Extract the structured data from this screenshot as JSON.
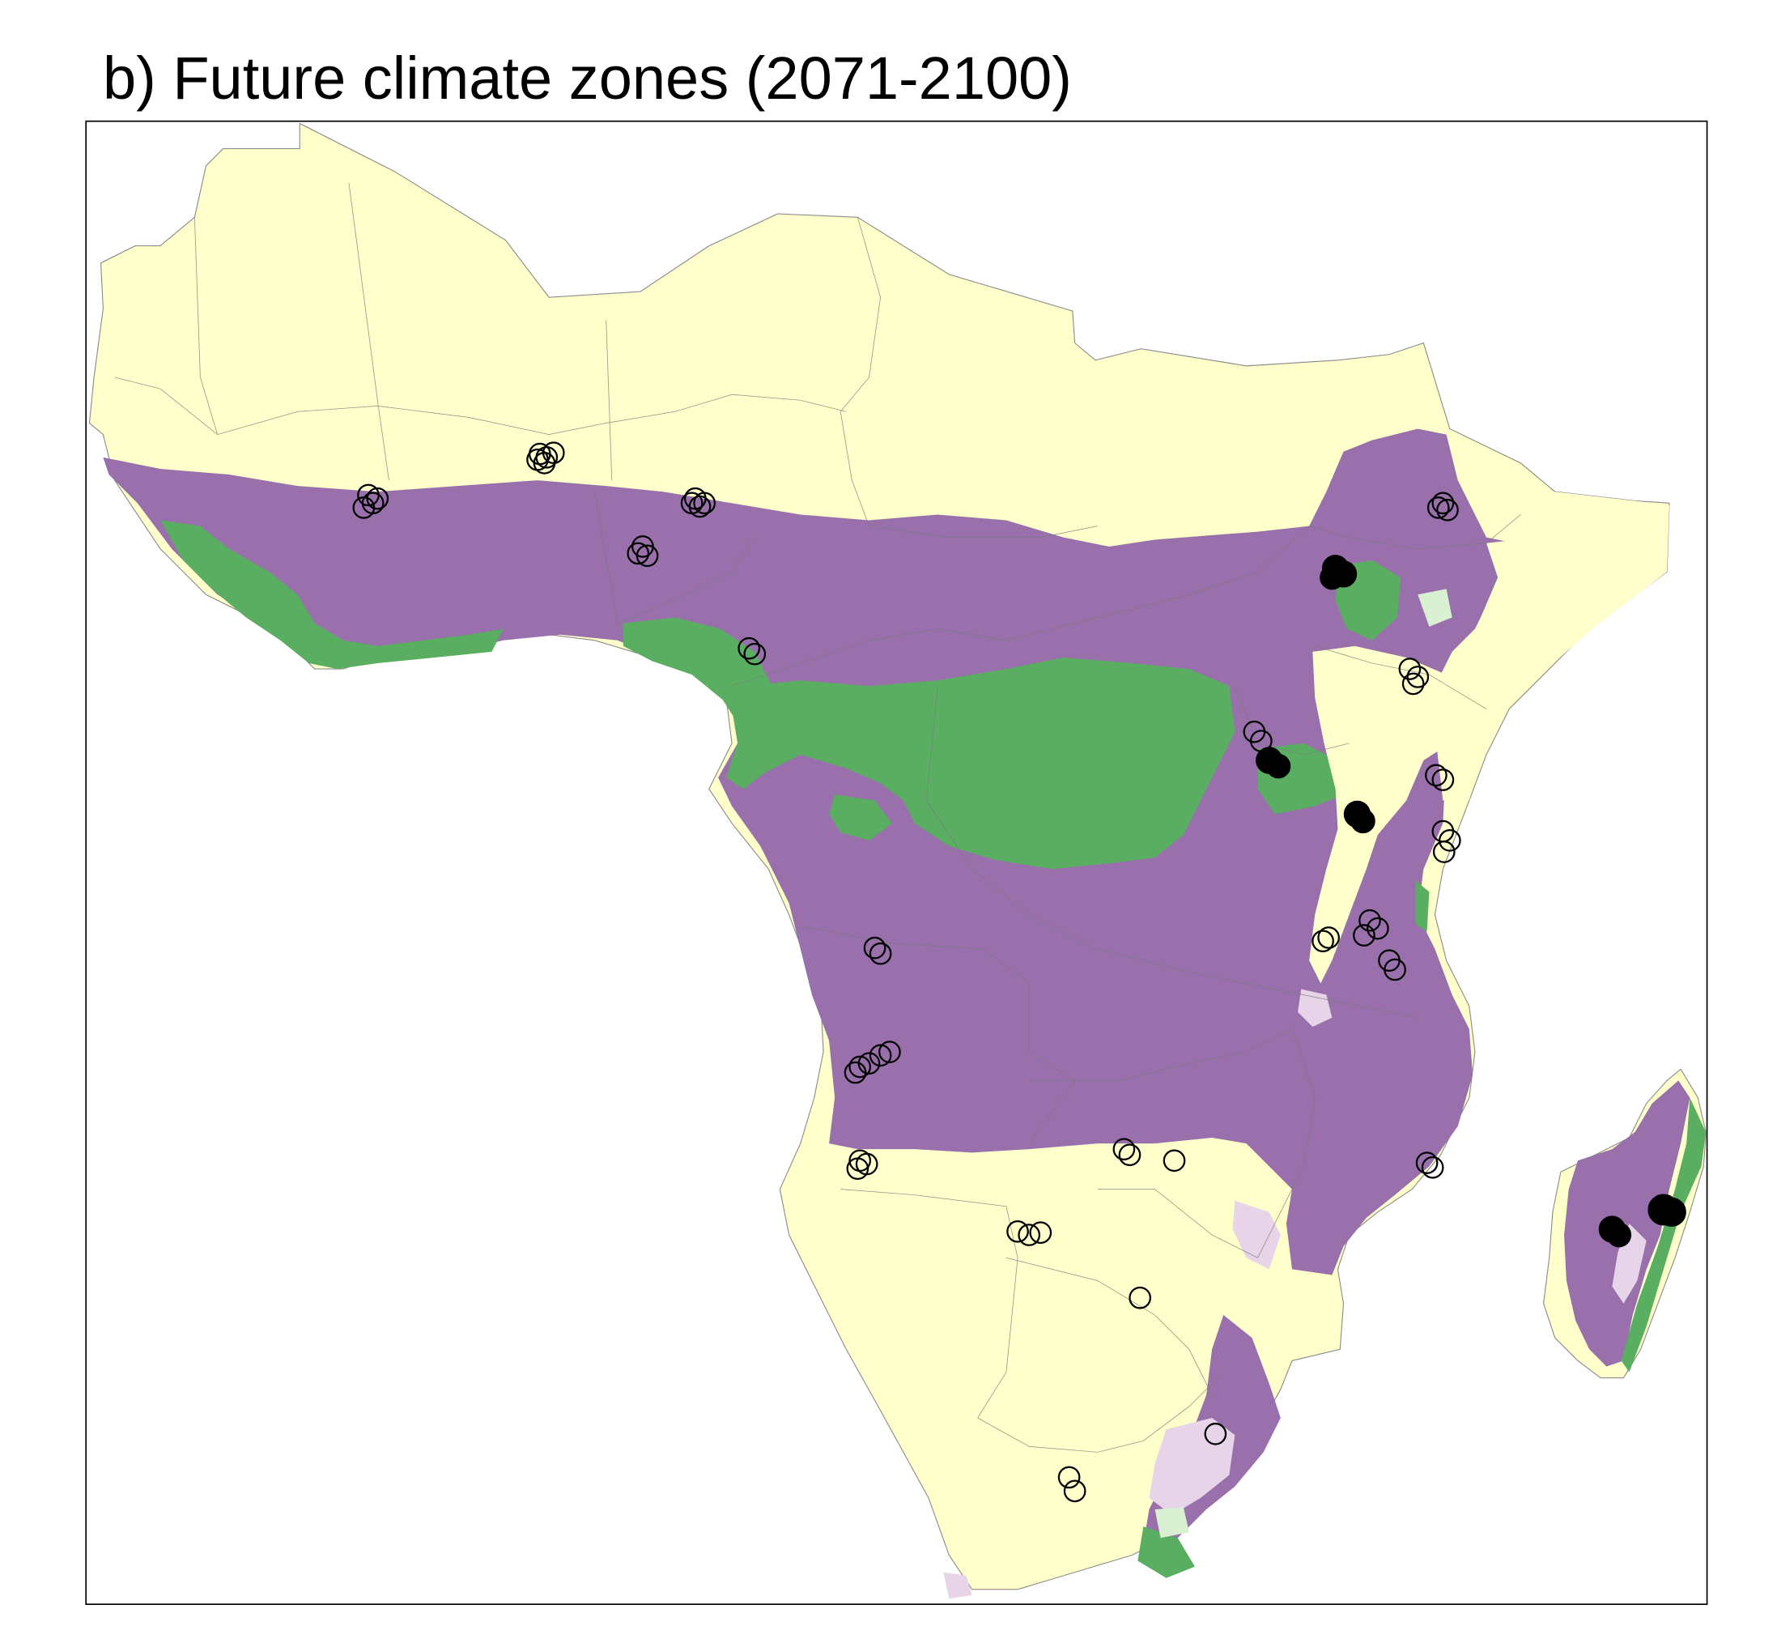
{
  "title": "b) Future climate zones (2071-2100)",
  "colors": {
    "arid_yellow": "#FFFFCC",
    "tropical_purple": "#9970AB",
    "humid_green": "#5AAE61",
    "light_lilac": "#E7D4E8",
    "pale_green": "#D9F0D3",
    "border_gray": "#8C8C8C",
    "site_marker": "#000000"
  },
  "map": {
    "region": "Sub-Saharan Africa and Madagascar",
    "zones": [
      "arid_yellow",
      "tropical_purple",
      "humid_green",
      "light_lilac",
      "pale_green"
    ]
  }
}
